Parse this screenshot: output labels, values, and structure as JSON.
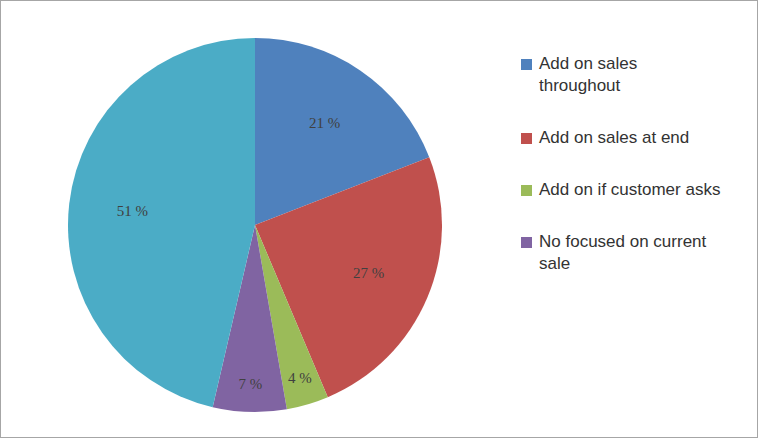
{
  "chart_data": {
    "type": "pie",
    "categories": [
      "Add on sales throughout",
      "Add on sales at end",
      "Add on if customer asks",
      "No focused on current sale",
      null
    ],
    "values": [
      21,
      27,
      4,
      7,
      51
    ],
    "value_labels": [
      "21 %",
      "27 %",
      "4 %",
      "7 %",
      "51 %"
    ],
    "colors": [
      "#4f81bd",
      "#c0504d",
      "#9bbb59",
      "#8064a2",
      "#4bacc6"
    ],
    "data_labels": true,
    "legend": "right"
  }
}
